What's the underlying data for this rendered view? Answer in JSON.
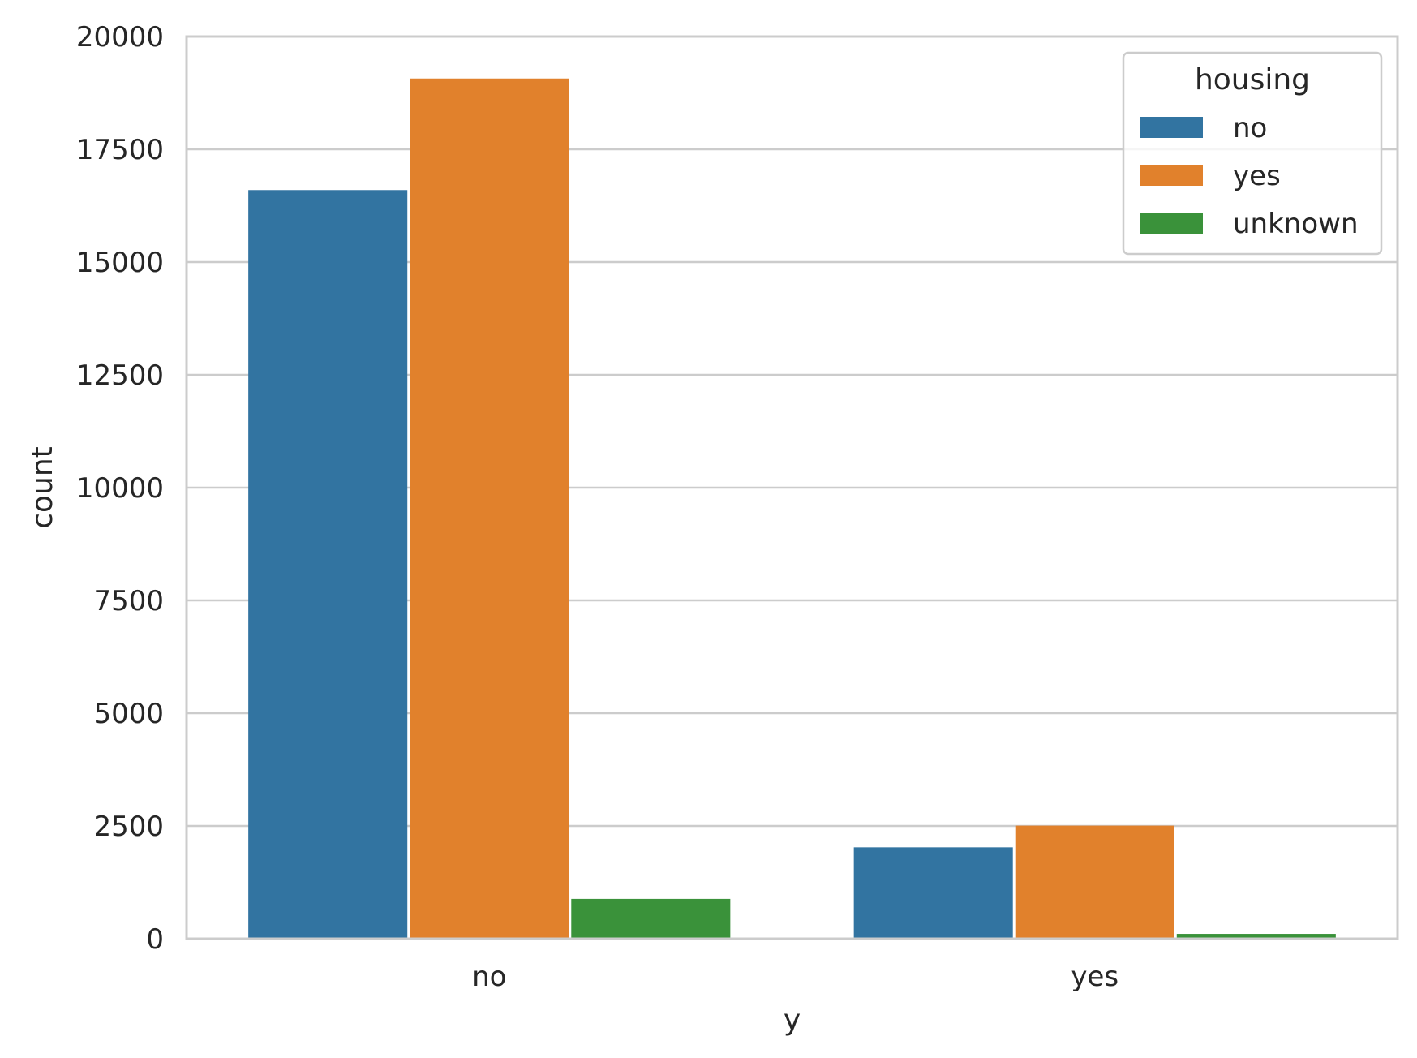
{
  "chart_data": {
    "type": "bar",
    "xlabel": "y",
    "ylabel": "count",
    "categories": [
      "no",
      "yes"
    ],
    "ylim": [
      0,
      20000
    ],
    "yticks": [
      0,
      2500,
      5000,
      7500,
      10000,
      12500,
      15000,
      17500,
      20000
    ],
    "grid": "horizontal",
    "legend": {
      "title": "housing",
      "placement": "top-right"
    },
    "series": [
      {
        "name": "no",
        "color": "#3274a1",
        "values": [
          16596,
          2026
        ]
      },
      {
        "name": "yes",
        "color": "#e1812c",
        "values": [
          19069,
          2507
        ]
      },
      {
        "name": "unknown",
        "color": "#3a923a",
        "values": [
          883,
          107
        ]
      }
    ]
  }
}
